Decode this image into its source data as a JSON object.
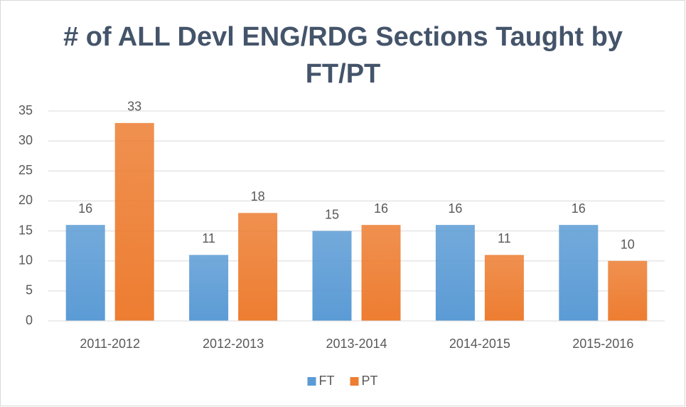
{
  "chart_data": {
    "type": "bar",
    "title": "# of ALL Devl ENG/RDG Sections Taught by FT/PT",
    "categories": [
      "2011-2012",
      "2012-2013",
      "2013-2014",
      "2014-2015",
      "2015-2016"
    ],
    "series": [
      {
        "name": "FT",
        "color": "#5b9bd5",
        "values": [
          16,
          11,
          15,
          16,
          16
        ]
      },
      {
        "name": "PT",
        "color": "#ed7d31",
        "values": [
          33,
          18,
          16,
          11,
          10
        ]
      }
    ],
    "ylim": [
      0,
      35
    ],
    "yticks": [
      0,
      5,
      10,
      15,
      20,
      25,
      30,
      35
    ],
    "grid": true,
    "legend": "bottom"
  }
}
